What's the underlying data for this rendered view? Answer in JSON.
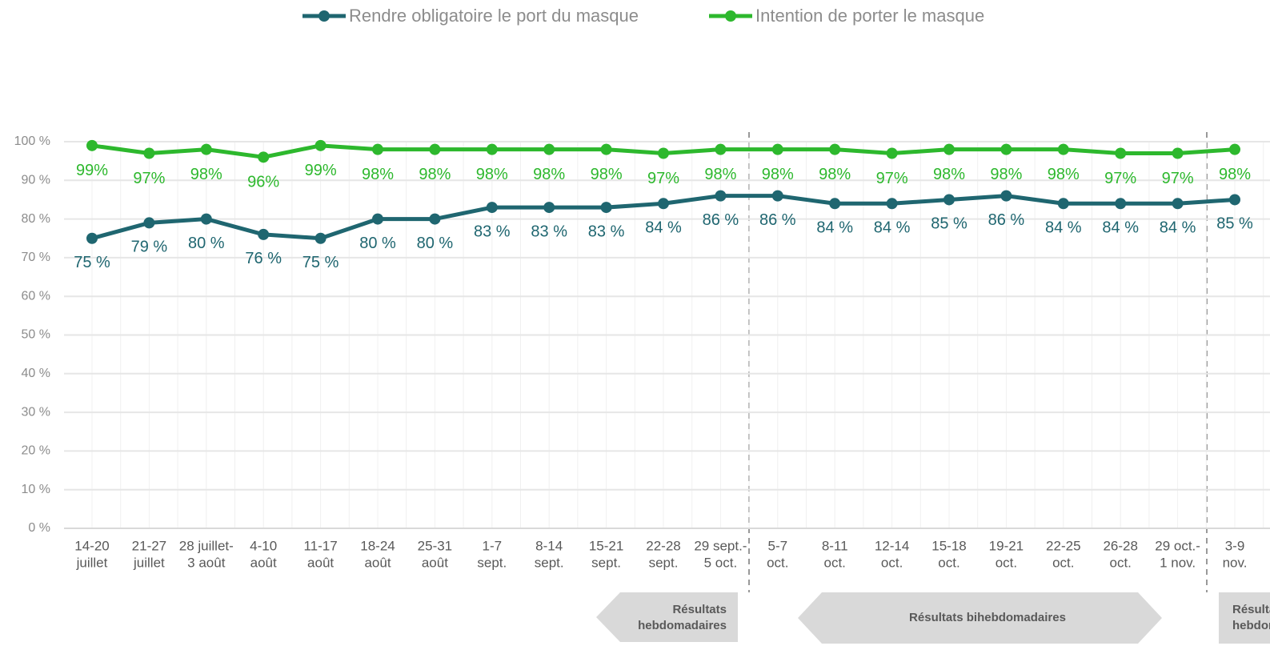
{
  "chart_data": {
    "type": "line",
    "categories": [
      [
        "14-20",
        "juillet"
      ],
      [
        "21-27",
        "juillet"
      ],
      [
        "28 juillet-",
        "3 août"
      ],
      [
        "4-10",
        "août"
      ],
      [
        "11-17",
        "août"
      ],
      [
        "18-24",
        "août"
      ],
      [
        "25-31",
        "août"
      ],
      [
        "1-7",
        "sept."
      ],
      [
        "8-14",
        "sept."
      ],
      [
        "15-21",
        "sept."
      ],
      [
        "22-28",
        "sept."
      ],
      [
        "29 sept.-",
        "5 oct."
      ],
      [
        "5-7",
        "oct."
      ],
      [
        "8-11",
        "oct."
      ],
      [
        "12-14",
        "oct."
      ],
      [
        "15-18",
        "oct."
      ],
      [
        "19-21",
        "oct."
      ],
      [
        "22-25",
        "oct."
      ],
      [
        "26-28",
        "oct."
      ],
      [
        "29 oct.-",
        "1 nov."
      ],
      [
        "3-9",
        "nov."
      ]
    ],
    "series": [
      {
        "name": "Rendre obligatoire le port du masque",
        "color": "#1f6670",
        "values": [
          75,
          79,
          80,
          76,
          75,
          80,
          80,
          83,
          83,
          83,
          84,
          86,
          86,
          84,
          84,
          85,
          86,
          84,
          84,
          84,
          85
        ],
        "value_labels": [
          "75 %",
          "79 %",
          "80 %",
          "76 %",
          "75 %",
          "80 %",
          "80 %",
          "83 %",
          "83 %",
          "83 %",
          "84 %",
          "86 %",
          "86 %",
          "84 %",
          "84 %",
          "85 %",
          "86 %",
          "84 %",
          "84 %",
          "84 %",
          "85 %"
        ]
      },
      {
        "name": "Intention de porter le masque",
        "color": "#2db82d",
        "values": [
          99,
          97,
          98,
          96,
          99,
          98,
          98,
          98,
          98,
          98,
          97,
          98,
          98,
          98,
          97,
          98,
          98,
          98,
          97,
          97,
          98
        ],
        "value_labels": [
          "99%",
          "97%",
          "98%",
          "96%",
          "99%",
          "98%",
          "98%",
          "98%",
          "98%",
          "98%",
          "97%",
          "98%",
          "98%",
          "98%",
          "97%",
          "98%",
          "98%",
          "98%",
          "97%",
          "97%",
          "98%"
        ]
      }
    ],
    "ylim": [
      0,
      100
    ],
    "yticks": [
      {
        "value": 0,
        "label": "0 %"
      },
      {
        "value": 10,
        "label": "10 %"
      },
      {
        "value": 20,
        "label": "20 %"
      },
      {
        "value": 30,
        "label": "30 %"
      },
      {
        "value": 40,
        "label": "40 %"
      },
      {
        "value": 50,
        "label": "50 %"
      },
      {
        "value": 60,
        "label": "60 %"
      },
      {
        "value": 70,
        "label": "70 %"
      },
      {
        "value": 80,
        "label": "80 %"
      },
      {
        "value": 90,
        "label": "90 %"
      },
      {
        "value": 100,
        "label": "100 %"
      }
    ],
    "grid": true,
    "legend": "top",
    "annotations": [
      [
        "Résultats",
        "hebdomadaires"
      ],
      [
        "Résultats bihebdomadaires"
      ],
      [
        "Résultats",
        "hebdomadaires"
      ]
    ]
  }
}
